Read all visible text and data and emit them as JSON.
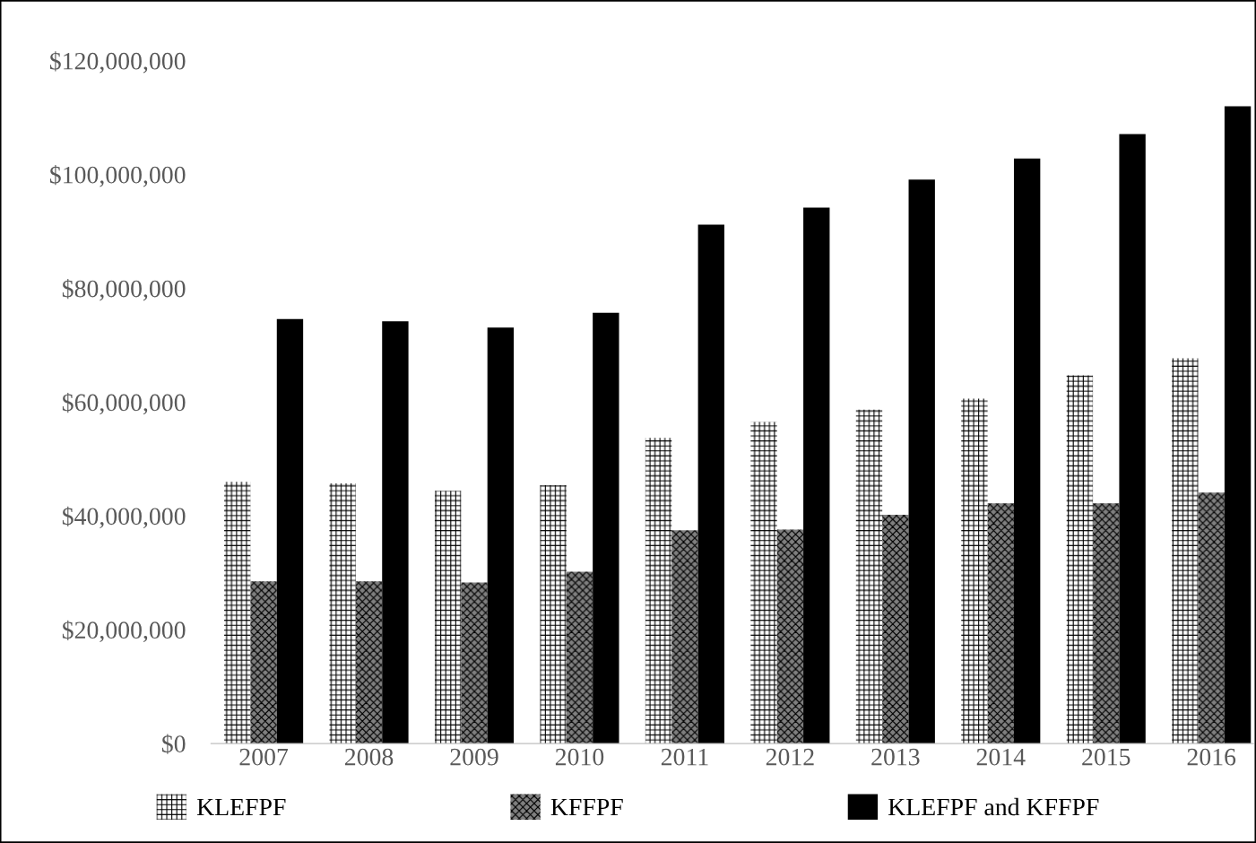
{
  "chart_data": {
    "type": "bar",
    "categories": [
      "2007",
      "2008",
      "2009",
      "2010",
      "2011",
      "2012",
      "2013",
      "2014",
      "2015",
      "2016"
    ],
    "series": [
      {
        "name": "KLEFPF",
        "color": "#ffffff",
        "values": [
          46000000,
          45700000,
          44400000,
          45400000,
          53700000,
          56500000,
          58700000,
          60600000,
          64700000,
          67700000
        ]
      },
      {
        "name": "KFFPF",
        "color": "#7f7f7f",
        "values": [
          28500000,
          28500000,
          28300000,
          30200000,
          37500000,
          37600000,
          40200000,
          42200000,
          42200000,
          44100000
        ]
      },
      {
        "name": "KLEFPF and KFFPF",
        "color": "#000000",
        "values": [
          74600000,
          74200000,
          73100000,
          75700000,
          91200000,
          94200000,
          99100000,
          102800000,
          107100000,
          112000000
        ]
      }
    ],
    "ylim": [
      0,
      120000000
    ],
    "yticks": [
      {
        "value": 0,
        "label": "$0"
      },
      {
        "value": 20000000,
        "label": "$20,000,000"
      },
      {
        "value": 40000000,
        "label": "$40,000,000"
      },
      {
        "value": 60000000,
        "label": "$60,000,000"
      },
      {
        "value": 80000000,
        "label": "$80,000,000"
      },
      {
        "value": 100000000,
        "label": "$100,000,000"
      },
      {
        "value": 120000000,
        "label": "$120,000,000"
      }
    ],
    "grid": false,
    "legend": "bottom"
  }
}
